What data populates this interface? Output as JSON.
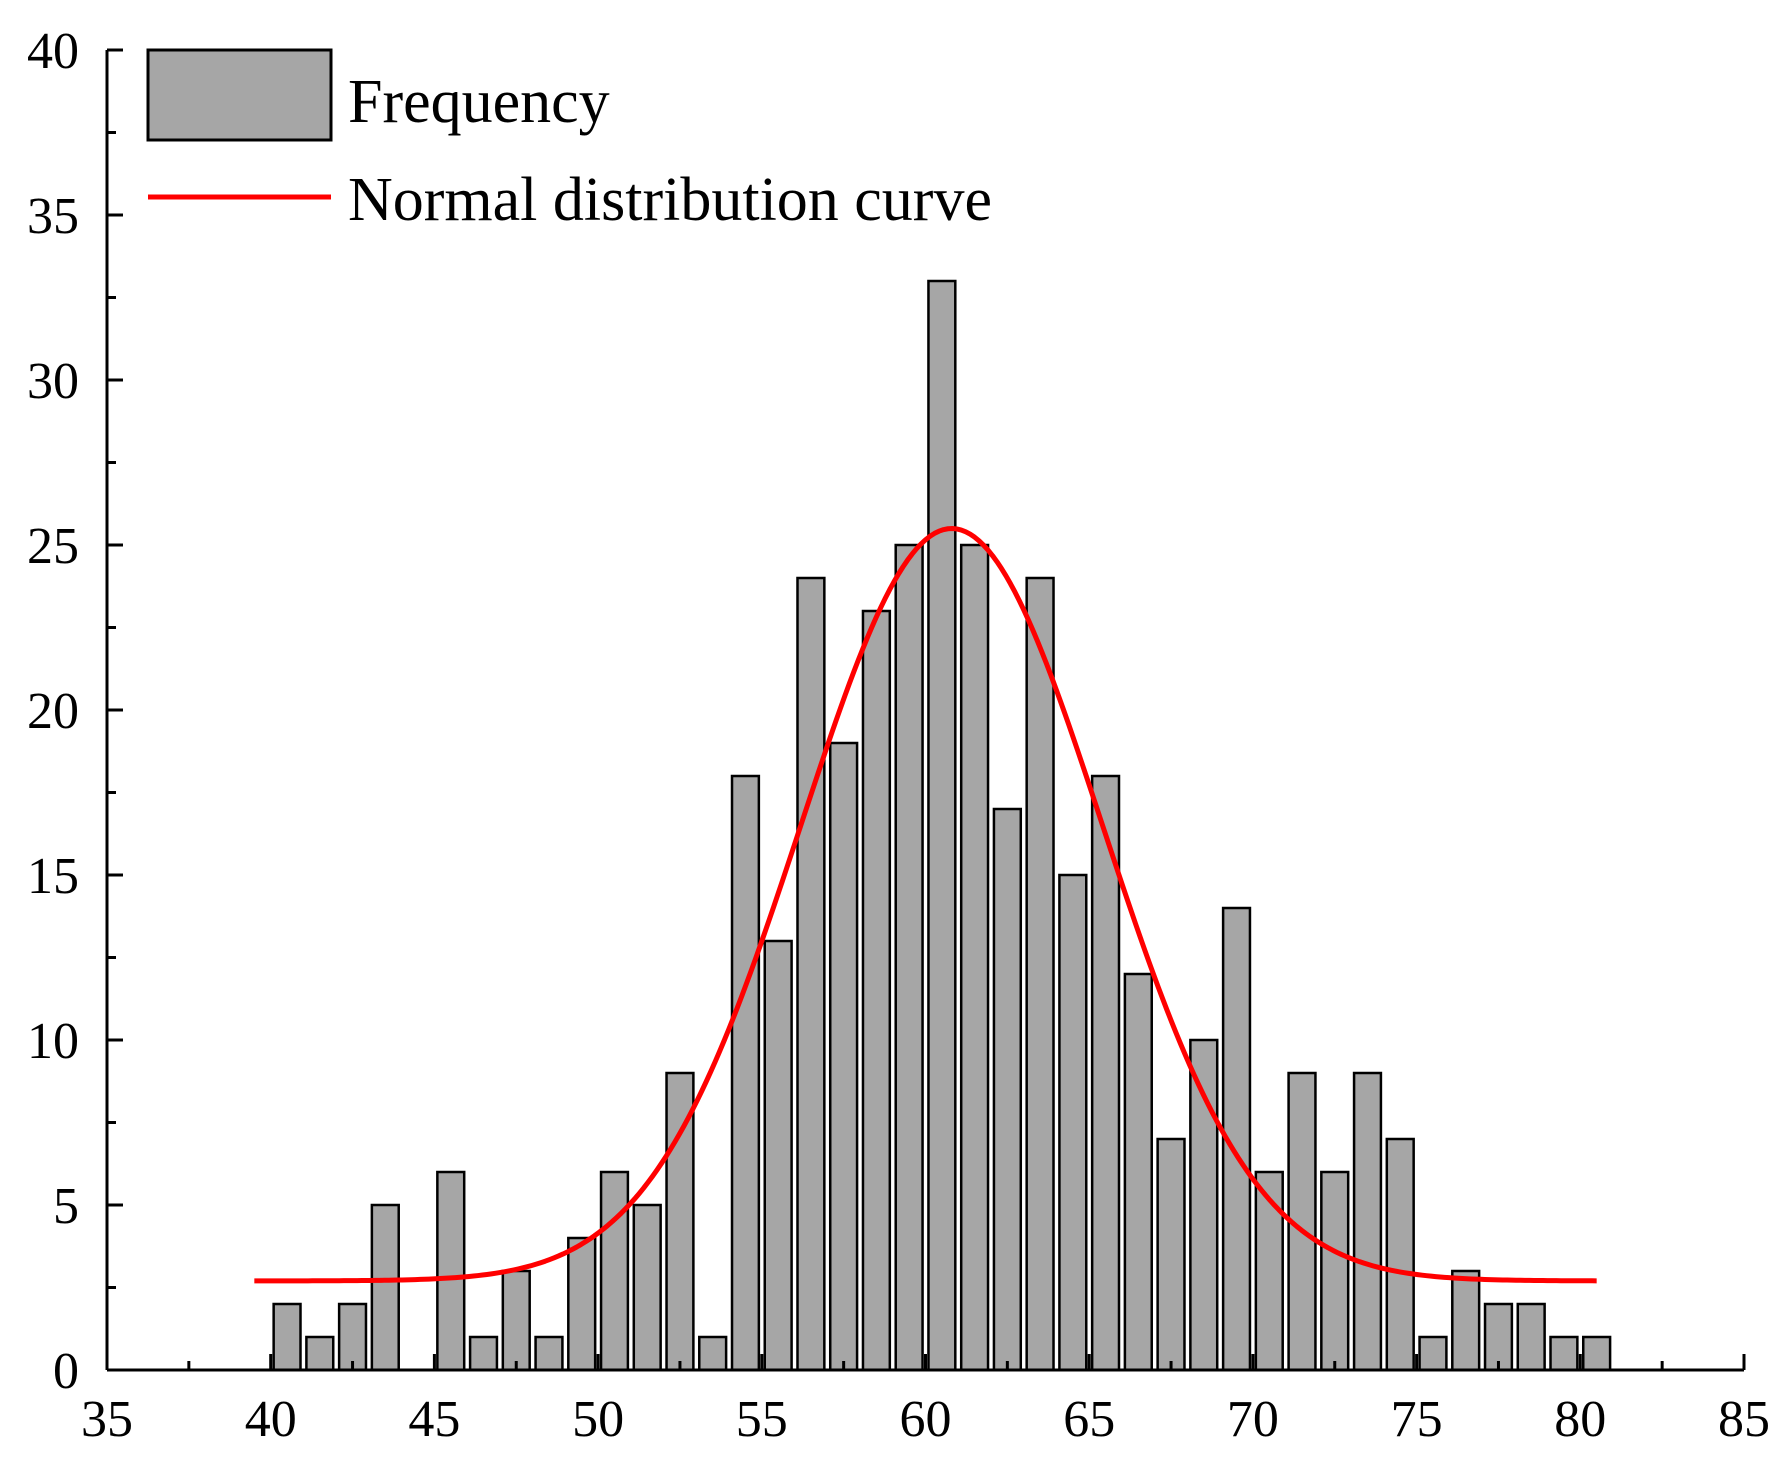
{
  "chart_data": {
    "type": "bar",
    "title": "",
    "xlabel": "",
    "ylabel": "",
    "xlim": [
      35,
      85
    ],
    "ylim": [
      0,
      40
    ],
    "x_ticks": [
      35,
      40,
      45,
      50,
      55,
      60,
      65,
      70,
      75,
      80,
      85
    ],
    "y_ticks": [
      0,
      5,
      10,
      15,
      20,
      25,
      30,
      35,
      40
    ],
    "x_tick_labels": [
      "35",
      "40",
      "45",
      "50",
      "55",
      "60",
      "65",
      "70",
      "75",
      "80",
      "85"
    ],
    "y_tick_labels": [
      "0",
      "5",
      "10",
      "15",
      "20",
      "25",
      "30",
      "35",
      "40"
    ],
    "grid": false,
    "legend_position": "top-left",
    "bin_width": 1,
    "series": [
      {
        "name": "Frequency",
        "kind": "histogram",
        "color": "#a6a6a6",
        "bins": [
          40.5,
          41.5,
          42.5,
          43.5,
          44.5,
          45.5,
          46.5,
          47.5,
          48.5,
          49.5,
          50.5,
          51.5,
          52.5,
          53.5,
          54.5,
          55.5,
          56.5,
          57.5,
          58.5,
          59.5,
          60.5,
          61.5,
          62.5,
          63.5,
          64.5,
          65.5,
          66.5,
          67.5,
          68.5,
          69.5,
          70.5,
          71.5,
          72.5,
          73.5,
          74.5,
          75.5,
          76.5,
          77.5,
          78.5,
          79.5,
          80.5
        ],
        "values": [
          2,
          1,
          2,
          5,
          0,
          6,
          1,
          3,
          1,
          4,
          6,
          5,
          9,
          1,
          18,
          13,
          24,
          19,
          23,
          25,
          33,
          25,
          17,
          24,
          15,
          18,
          12,
          7,
          10,
          14,
          6,
          9,
          6,
          9,
          7,
          1,
          3,
          2,
          2,
          1,
          1
        ]
      },
      {
        "name": "Normal distribution curve",
        "kind": "line",
        "color": "#ff0000",
        "x_range": [
          39.5,
          80.5
        ],
        "baseline": 2.7,
        "peak": 25.5,
        "mean": 60.8,
        "sigma": 4.6
      }
    ]
  }
}
